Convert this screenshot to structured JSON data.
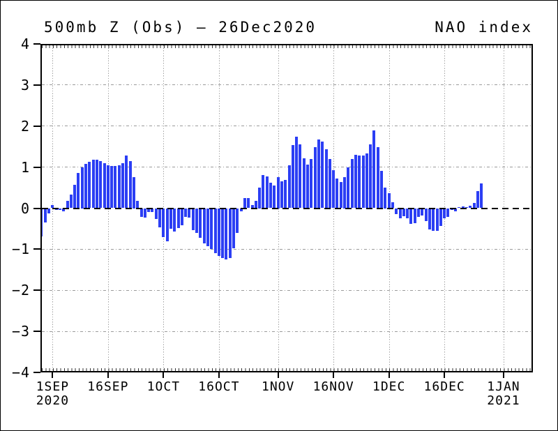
{
  "header": {
    "title": "500mb Z (Obs) – 26Dec2020",
    "right_label": "NAO index"
  },
  "chart_data": {
    "type": "bar",
    "title": "500mb Z (Obs) – 26Dec2020",
    "series_name": "NAO index",
    "xlabel": "",
    "ylabel": "",
    "ylim": [
      -4,
      4
    ],
    "grid": true,
    "bar_color": "#2b3ef4",
    "start_date": "2020-08-29",
    "end_date": "2020-12-26",
    "frequency": "daily",
    "values": [
      -0.68,
      -0.34,
      -0.13,
      0.07,
      -0.05,
      -0.04,
      -0.07,
      0.17,
      0.33,
      0.57,
      0.85,
      1.0,
      1.08,
      1.13,
      1.18,
      1.18,
      1.15,
      1.1,
      1.05,
      1.03,
      1.02,
      1.05,
      1.1,
      1.28,
      1.15,
      0.75,
      0.17,
      -0.22,
      -0.23,
      -0.1,
      -0.1,
      -0.26,
      -0.47,
      -0.7,
      -0.8,
      -0.5,
      -0.57,
      -0.49,
      -0.42,
      -0.21,
      -0.23,
      -0.54,
      -0.61,
      -0.73,
      -0.86,
      -0.93,
      -1.0,
      -1.09,
      -1.17,
      -1.21,
      -1.24,
      -1.22,
      -0.98,
      -0.6,
      -0.08,
      0.25,
      0.24,
      0.08,
      0.17,
      0.5,
      0.8,
      0.77,
      0.62,
      0.55,
      0.75,
      0.66,
      0.69,
      1.04,
      1.54,
      1.74,
      1.55,
      1.21,
      1.07,
      1.19,
      1.48,
      1.67,
      1.63,
      1.43,
      1.19,
      0.92,
      0.72,
      0.64,
      0.75,
      0.99,
      1.19,
      1.3,
      1.28,
      1.29,
      1.33,
      1.55,
      1.9,
      1.48,
      0.91,
      0.5,
      0.37,
      0.14,
      -0.15,
      -0.24,
      -0.2,
      -0.25,
      -0.39,
      -0.36,
      -0.21,
      -0.18,
      -0.31,
      -0.52,
      -0.55,
      -0.55,
      -0.43,
      -0.24,
      -0.22,
      -0.05,
      -0.08,
      0.02,
      0.05,
      0.03,
      0.06,
      0.12,
      0.42,
      0.6
    ],
    "y_ticks": [
      {
        "v": 4,
        "label": "4"
      },
      {
        "v": 3,
        "label": "3"
      },
      {
        "v": 2,
        "label": "2"
      },
      {
        "v": 1,
        "label": "1"
      },
      {
        "v": 0,
        "label": "0"
      },
      {
        "v": -1,
        "label": "−1"
      },
      {
        "v": -2,
        "label": "−2"
      },
      {
        "v": -3,
        "label": "−3"
      },
      {
        "v": -4,
        "label": "−4"
      }
    ],
    "x_ticks": [
      {
        "day": 0,
        "label": "1SEP",
        "sub": "2020"
      },
      {
        "day": 15,
        "label": "16SEP",
        "sub": ""
      },
      {
        "day": 30,
        "label": "1OCT",
        "sub": ""
      },
      {
        "day": 45,
        "label": "16OCT",
        "sub": ""
      },
      {
        "day": 61,
        "label": "1NOV",
        "sub": ""
      },
      {
        "day": 76,
        "label": "16NOV",
        "sub": ""
      },
      {
        "day": 91,
        "label": "1DEC",
        "sub": ""
      },
      {
        "day": 106,
        "label": "16DEC",
        "sub": ""
      },
      {
        "day": 122,
        "label": "1JAN",
        "sub": "2021"
      }
    ]
  }
}
